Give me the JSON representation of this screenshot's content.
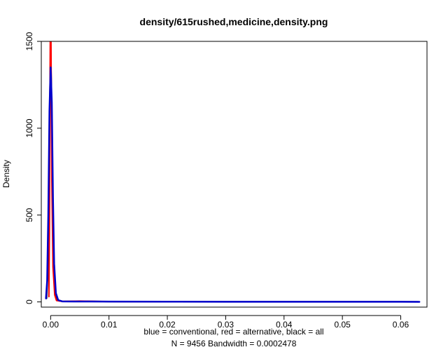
{
  "chart_data": {
    "type": "line",
    "title": "density/615rushed,medicine,density.png",
    "ylabel": "Density",
    "xlabel_lines": [
      "blue = conventional, red = alternative, black = all",
      "N = 9456   Bandwidth = 0.0002478"
    ],
    "xlim": [
      -0.0016,
      0.0645
    ],
    "ylim": [
      -30,
      1500
    ],
    "x_ticks": [
      0.0,
      0.01,
      0.02,
      0.03,
      0.04,
      0.05,
      0.06
    ],
    "x_tick_labels": [
      "0.00",
      "0.01",
      "0.02",
      "0.03",
      "0.04",
      "0.05",
      "0.06"
    ],
    "y_ticks": [
      0,
      500,
      1000,
      1500
    ],
    "y_tick_labels": [
      "0",
      "500",
      "1000",
      "1500"
    ],
    "grid": false,
    "series": [
      {
        "color": "#000000",
        "width": 2,
        "points": [
          [
            -0.0007,
            20
          ],
          [
            -0.0005,
            150
          ],
          [
            -0.0003,
            600
          ],
          [
            -0.0001,
            1250
          ],
          [
            0.0,
            1470
          ],
          [
            0.0001,
            1300
          ],
          [
            0.0003,
            700
          ],
          [
            0.0005,
            220
          ],
          [
            0.0008,
            40
          ],
          [
            0.0012,
            8
          ],
          [
            0.002,
            3
          ],
          [
            0.005,
            4
          ],
          [
            0.01,
            2
          ],
          [
            0.02,
            1.5
          ],
          [
            0.03,
            1
          ],
          [
            0.04,
            1
          ],
          [
            0.05,
            1
          ],
          [
            0.063,
            1
          ]
        ]
      },
      {
        "color": "#ff0000",
        "width": 2,
        "points": [
          [
            -0.0003,
            30
          ],
          [
            -0.0002,
            400
          ],
          [
            -0.0001,
            1300
          ],
          [
            -5e-05,
            1600
          ],
          [
            5e-05,
            1600
          ],
          [
            0.0001,
            1300
          ],
          [
            0.0002,
            700
          ],
          [
            0.0004,
            200
          ],
          [
            0.0007,
            40
          ],
          [
            0.001,
            8
          ],
          [
            0.002,
            3
          ],
          [
            0.005,
            5
          ],
          [
            0.008,
            3
          ],
          [
            0.012,
            2
          ],
          [
            0.016,
            2
          ],
          [
            0.02,
            1
          ],
          [
            0.0215,
            1
          ]
        ]
      },
      {
        "color": "#0000cc",
        "width": 2.5,
        "points": [
          [
            -0.0008,
            20
          ],
          [
            -0.0006,
            120
          ],
          [
            -0.0004,
            500
          ],
          [
            -0.0002,
            1100
          ],
          [
            0.0,
            1350
          ],
          [
            0.0002,
            1150
          ],
          [
            0.0004,
            600
          ],
          [
            0.0006,
            220
          ],
          [
            0.0009,
            50
          ],
          [
            0.0013,
            10
          ],
          [
            0.002,
            3
          ],
          [
            0.004,
            2.5
          ],
          [
            0.01,
            2
          ],
          [
            0.02,
            1.5
          ],
          [
            0.03,
            1
          ],
          [
            0.04,
            1
          ],
          [
            0.05,
            1
          ],
          [
            0.06,
            1
          ],
          [
            0.0632,
            0.5
          ]
        ]
      }
    ]
  }
}
